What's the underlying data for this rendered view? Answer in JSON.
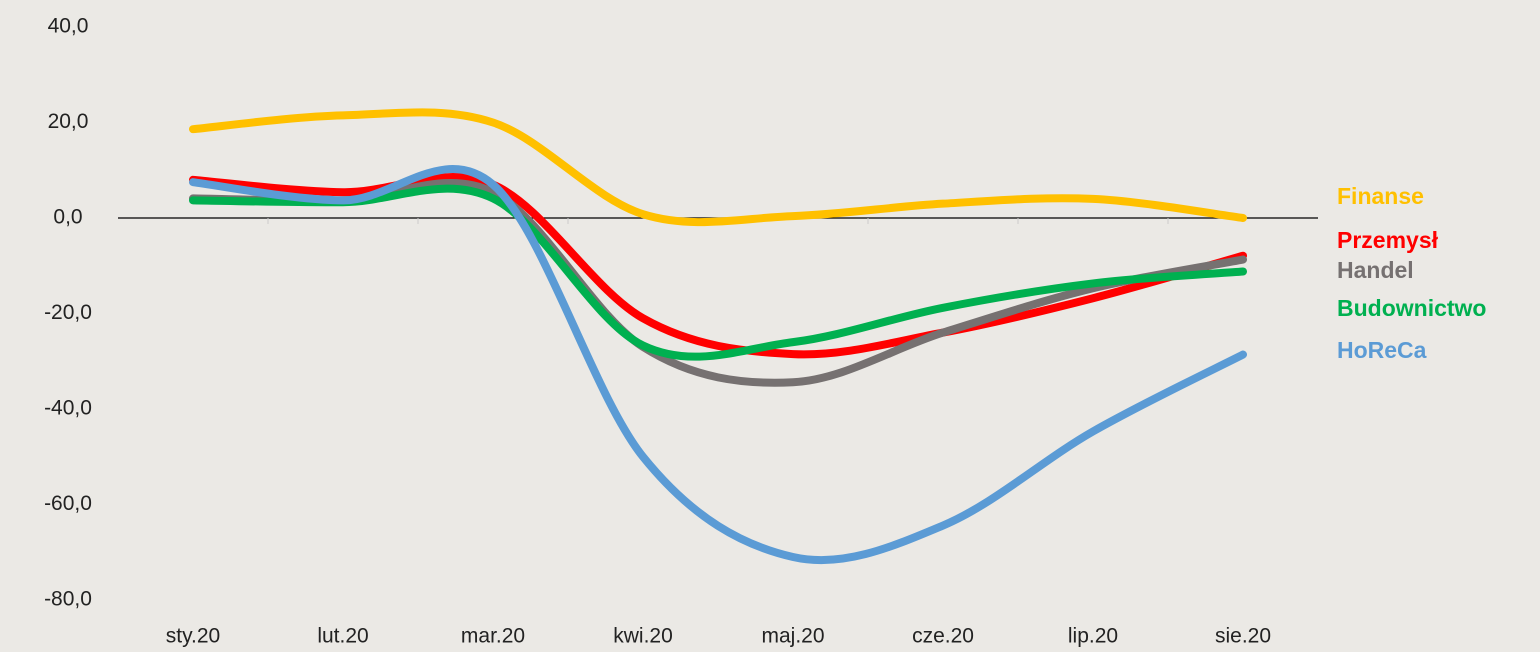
{
  "chart_data": {
    "type": "line",
    "categories": [
      "sty.20",
      "lut.20",
      "mar.20",
      "kwi.20",
      "maj.20",
      "cze.20",
      "lip.20",
      "sie.20"
    ],
    "series": [
      {
        "name": "Finanse",
        "color": "#ffc000",
        "values": [
          18.6,
          21.5,
          20,
          0.8,
          0.4,
          3,
          4,
          0
        ]
      },
      {
        "name": "Przemysł",
        "color": "#ff0000",
        "values": [
          8,
          5.4,
          7,
          -21,
          -28.5,
          -24,
          -16.8,
          -7.9
        ]
      },
      {
        "name": "Handel",
        "color": "#767171",
        "values": [
          4.1,
          3.7,
          5.4,
          -27,
          -34.4,
          -24,
          -14.7,
          -8.7
        ]
      },
      {
        "name": "Budownictwo",
        "color": "#00b050",
        "values": [
          3.7,
          3.3,
          4.1,
          -26.7,
          -26,
          -18.8,
          -13.7,
          -11.2
        ]
      },
      {
        "name": "HoReCa",
        "color": "#5b9bd5",
        "values": [
          7.5,
          3.7,
          7,
          -50,
          -71,
          -64.4,
          -44.7,
          -28.6
        ]
      }
    ],
    "ylim": [
      -80,
      40
    ],
    "yticks": [
      {
        "value": -80,
        "label": "-80,0"
      },
      {
        "value": -60,
        "label": "-60,0"
      },
      {
        "value": -40,
        "label": "-40,0"
      },
      {
        "value": -20,
        "label": "-20,0"
      },
      {
        "value": 0,
        "label": "0,0"
      },
      {
        "value": 20,
        "label": "20,0"
      },
      {
        "value": 40,
        "label": "40,0"
      }
    ],
    "grid": false
  }
}
